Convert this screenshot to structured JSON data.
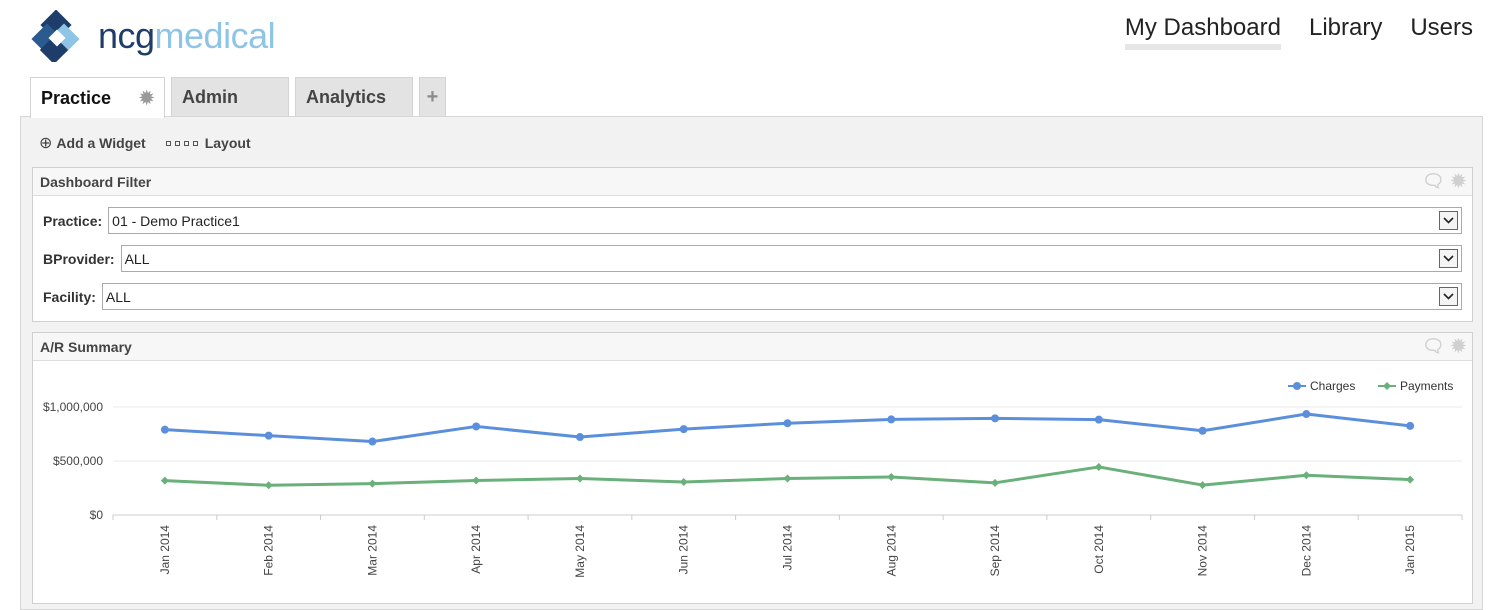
{
  "brand": {
    "part1": "ncg",
    "part2": "medical"
  },
  "topnav": [
    {
      "label": "My Dashboard"
    },
    {
      "label": "Library"
    },
    {
      "label": "Users"
    }
  ],
  "tabs": [
    {
      "label": "Practice"
    },
    {
      "label": "Admin"
    },
    {
      "label": "Analytics"
    },
    {
      "label": "+"
    }
  ],
  "toolbar": {
    "add_widget": "Add a Widget",
    "layout": "Layout"
  },
  "filter": {
    "title": "Dashboard Filter",
    "practice_label": "Practice:",
    "practice_value": "01 - Demo Practice1",
    "bprovider_label": "BProvider:",
    "bprovider_value": "ALL",
    "facility_label": "Facility:",
    "facility_value": "ALL"
  },
  "ar_summary": {
    "title": "A/R Summary"
  },
  "colors": {
    "charges": "#5b8fdc",
    "payments": "#6ab07a",
    "brand_dark": "#1f3d6a",
    "brand_light": "#8ec5e6"
  },
  "chart_data": {
    "type": "line",
    "title": "A/R Summary",
    "categories": [
      "Jan 2014",
      "Feb 2014",
      "Mar 2014",
      "Apr 2014",
      "May 2014",
      "Jun 2014",
      "Jul 2014",
      "Aug 2014",
      "Sep 2014",
      "Oct 2014",
      "Nov 2014",
      "Dec 2014",
      "Jan 2015"
    ],
    "series": [
      {
        "name": "Charges",
        "values": [
          790000,
          735000,
          680000,
          820000,
          722000,
          795000,
          850000,
          885000,
          895000,
          883000,
          780000,
          935000,
          825000
        ]
      },
      {
        "name": "Payments",
        "values": [
          318000,
          275000,
          290000,
          320000,
          338000,
          305000,
          338000,
          352000,
          298000,
          445000,
          277000,
          368000,
          328000
        ]
      }
    ],
    "yticks": [
      "$0",
      "$500,000",
      "$1,000,000"
    ],
    "ylim": [
      0,
      1000000
    ],
    "grid": true,
    "legend": "top-right"
  }
}
